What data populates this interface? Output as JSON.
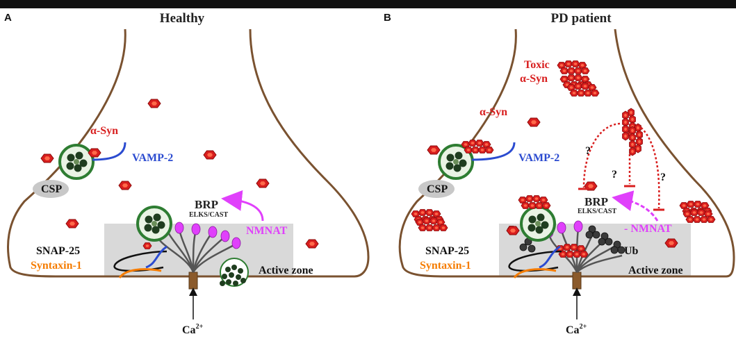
{
  "colors": {
    "top_bar": "#111111",
    "membrane": "#7a5230",
    "alpha_syn": "#d81e1e",
    "vesicle_ring": "#2e7d32",
    "vesicle_dark": "#1f3d1f",
    "vamp": "#2b4bd0",
    "nmnat": "#e040fb",
    "syntaxin": "#f57c00",
    "active_zone": "#d9d9d9",
    "csp": "#c8c8c8"
  },
  "panel_a": {
    "letter": "A",
    "title": "Healthy",
    "alpha_syn_label": "α-Syn",
    "vamp_label": "VAMP-2",
    "csp_label": "CSP",
    "brp_label": "BRP",
    "elks_label": "ELKS/CAST",
    "nmnat_label": "NMNAT",
    "snap_label": "SNAP-25",
    "syntaxin_label": "Syntaxin-1",
    "active_zone_label": "Active zone",
    "ca_label": "Ca",
    "ca_sup": "2+"
  },
  "panel_b": {
    "letter": "B",
    "title": "PD patient",
    "toxic_label_1": "Toxic",
    "toxic_label_2": "α-Syn",
    "alpha_syn_label": "α-Syn",
    "vamp_label": "VAMP-2",
    "csp_label": "CSP",
    "brp_label": "BRP",
    "elks_label": "ELKS/CAST",
    "nmnat_label": "- NMNAT",
    "snap_label": "SNAP-25",
    "syntaxin_label": "Syntaxin-1",
    "ub_label": "Ub",
    "active_zone_label": "Active zone",
    "ca_label": "Ca",
    "ca_sup": "2+",
    "question_marks": [
      "?",
      "?",
      "?"
    ]
  }
}
